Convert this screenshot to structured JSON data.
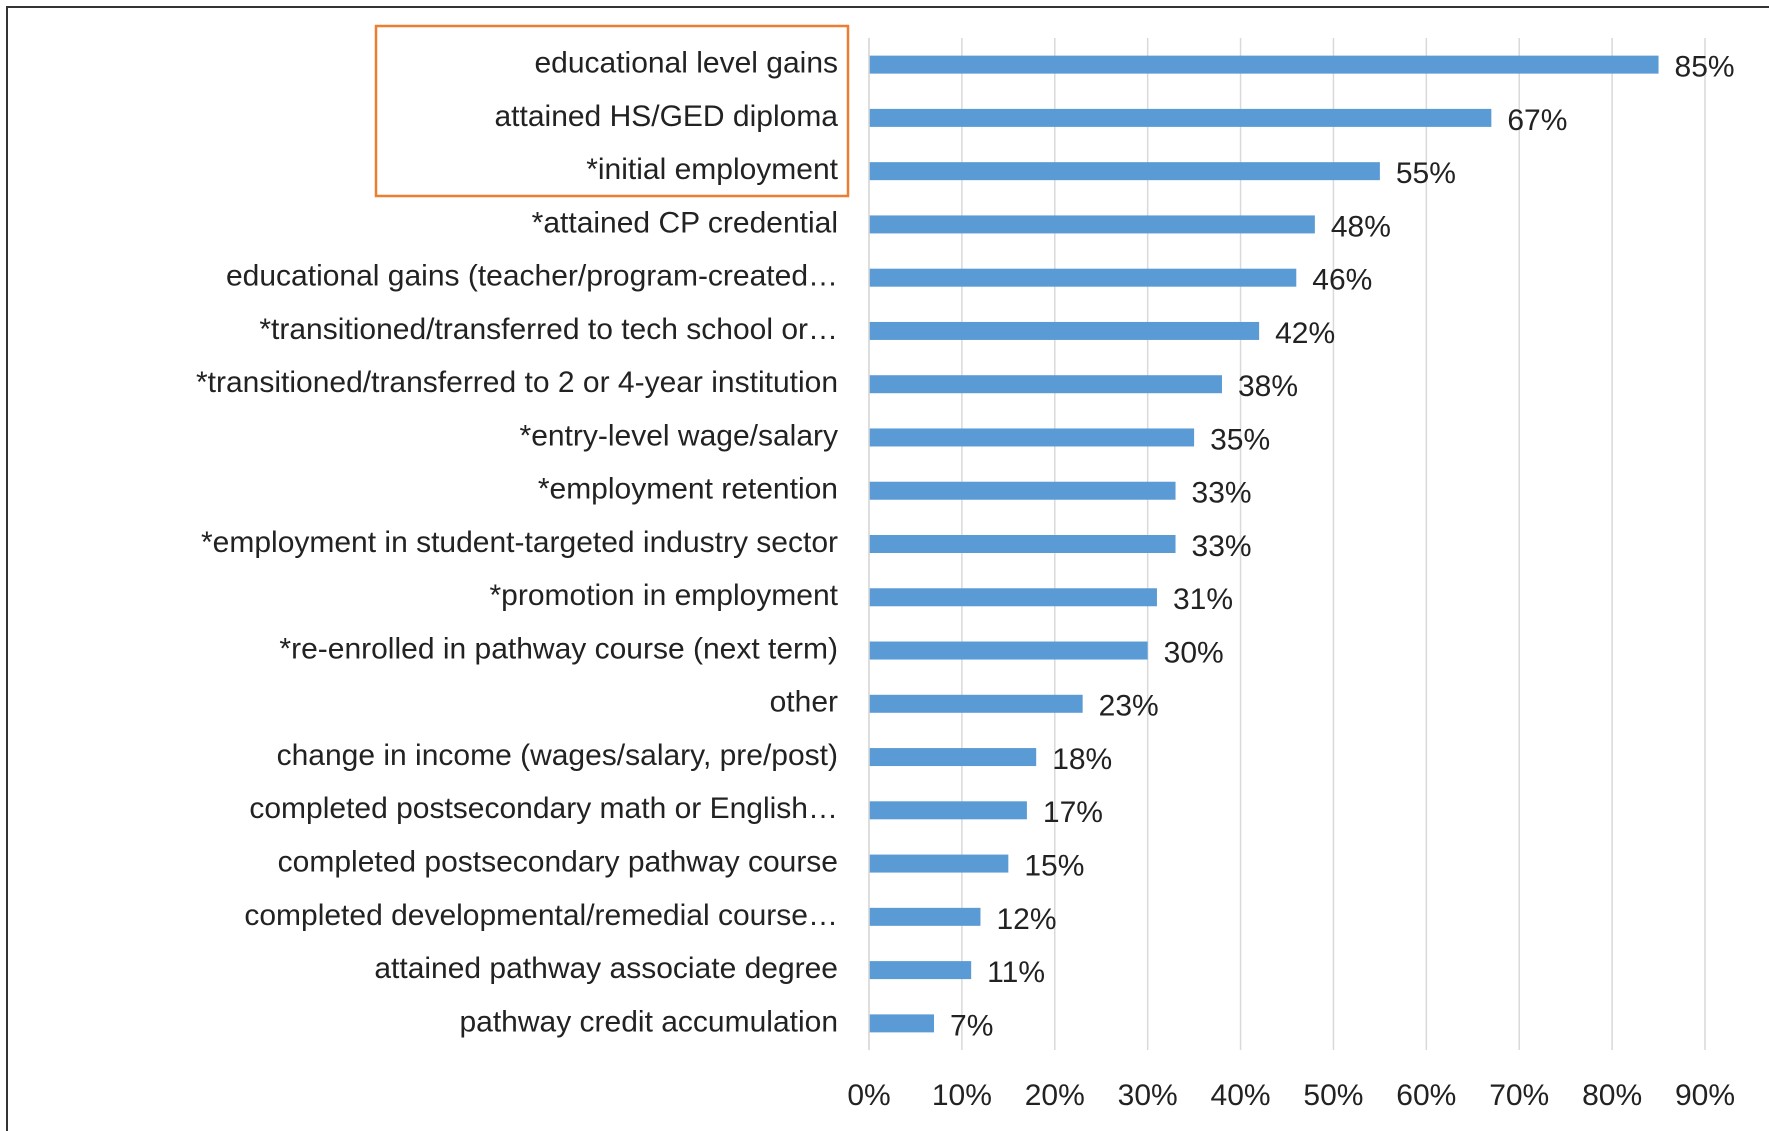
{
  "chart_data": {
    "type": "barh",
    "categories": [
      "educational level gains",
      "attained HS/GED diploma",
      "*initial employment",
      "*attained CP credential",
      "educational gains (teacher/program-created…",
      "*transitioned/transferred to tech school or…",
      "*transitioned/transferred to 2 or 4-year institution",
      "*entry-level wage/salary",
      "*employment retention",
      "*employment in student-targeted industry sector",
      "*promotion in employment",
      "*re-enrolled in pathway course (next term)",
      "other",
      "change in income (wages/salary, pre/post)",
      "completed postsecondary math or English…",
      "completed postsecondary pathway course",
      "completed developmental/remedial course…",
      "attained pathway associate degree",
      "pathway credit accumulation"
    ],
    "values": [
      85,
      67,
      55,
      48,
      46,
      42,
      38,
      35,
      33,
      33,
      31,
      30,
      23,
      18,
      17,
      15,
      12,
      11,
      7
    ],
    "value_labels": [
      "85%",
      "67%",
      "55%",
      "48%",
      "46%",
      "42%",
      "38%",
      "35%",
      "33%",
      "33%",
      "31%",
      "30%",
      "23%",
      "18%",
      "17%",
      "15%",
      "12%",
      "11%",
      "7%"
    ],
    "color": "#5b9bd5",
    "xlim": [
      0,
      90
    ],
    "xticks": [
      {
        "value": 0,
        "label": "0%"
      },
      {
        "value": 10,
        "label": "10%"
      },
      {
        "value": 20,
        "label": "20%"
      },
      {
        "value": 30,
        "label": "30%"
      },
      {
        "value": 40,
        "label": "40%"
      },
      {
        "value": 50,
        "label": "50%"
      },
      {
        "value": 60,
        "label": "60%"
      },
      {
        "value": 70,
        "label": "70%"
      },
      {
        "value": 80,
        "label": "80%"
      },
      {
        "value": 90,
        "label": "90%"
      }
    ],
    "grid": true
  }
}
